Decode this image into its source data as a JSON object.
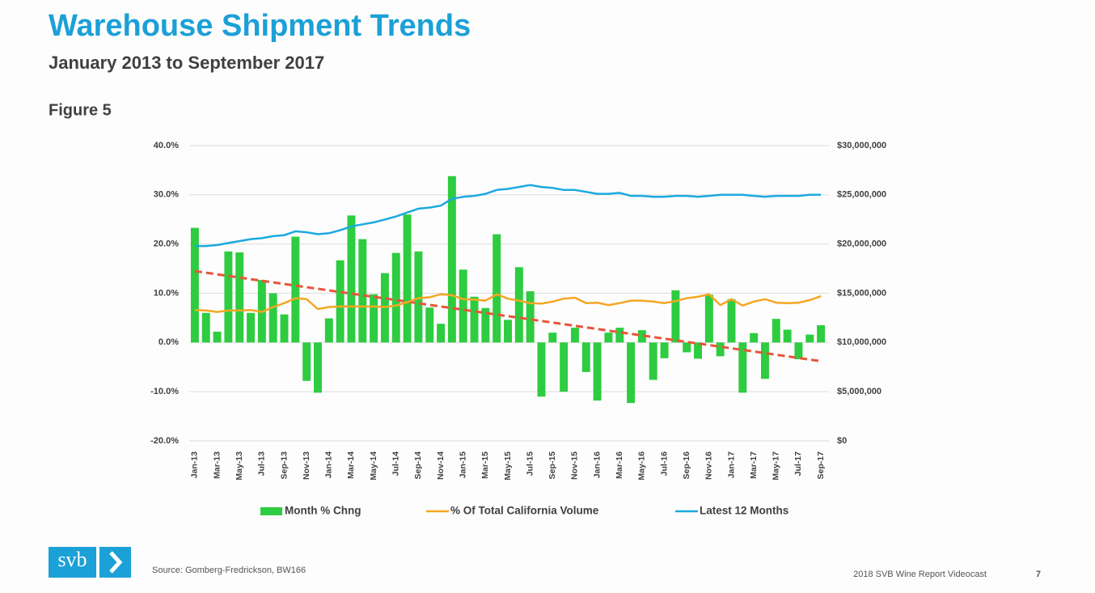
{
  "slide": {
    "title": "Warehouse Shipment Trends",
    "subtitle": "January 2013 to September 2017",
    "figure": "Figure 5",
    "source": "Source: Gomberg-Fredrickson, BW166",
    "footer": "2018 SVB Wine Report Videocast",
    "page_number": "7",
    "logo": "svb"
  },
  "chart_data": {
    "type": "bar_line",
    "categories": [
      "Jan-13",
      null,
      "Mar-13",
      null,
      "May-13",
      null,
      "Jul-13",
      null,
      "Sep-13",
      null,
      "Nov-13",
      null,
      "Jan-14",
      null,
      "Mar-14",
      null,
      "May-14",
      null,
      "Jul-14",
      null,
      "Sep-14",
      null,
      "Nov-14",
      null,
      "Jan-15",
      null,
      "Mar-15",
      null,
      "May-15",
      null,
      "Jul-15",
      null,
      "Sep-15",
      null,
      "Nov-15",
      null,
      "Jan-16",
      null,
      "Mar-16",
      null,
      "May-16",
      null,
      "Jul-16",
      null,
      "Sep-16",
      null,
      "Nov-16",
      null,
      "Jan-17",
      null,
      "Mar-17",
      null,
      "May-17",
      null,
      "Jul-17",
      null,
      "Sep-17"
    ],
    "series": [
      {
        "name": "Month % Chng",
        "type": "bar",
        "color": "#2ecc40",
        "values": [
          23.3,
          6,
          2.2,
          18.5,
          18.3,
          6,
          12.7,
          10,
          5.7,
          21.5,
          -7.8,
          -10.2,
          4.9,
          16.7,
          25.8,
          21,
          9.8,
          14.1,
          18.2,
          26,
          18.5,
          7.1,
          3.8,
          33.8,
          14.8,
          9.3,
          7,
          22,
          4.6,
          15.3,
          10.4,
          -11,
          2,
          -10,
          3,
          -6,
          -11.8,
          2,
          3,
          -12.3,
          2.5,
          -7.6,
          -3.2,
          10.6,
          -2,
          -3.3,
          9.7,
          -2.8,
          8.8,
          -10.2,
          1.9,
          -7.4,
          4.8,
          2.6,
          -3.4,
          1.6,
          3.5
        ]
      },
      {
        "name": "% Of Total California Volume",
        "type": "line",
        "color": "#f5a623",
        "values": [
          6.6,
          6.5,
          6.2,
          6.5,
          6.5,
          6.6,
          6.2,
          7.2,
          8.0,
          9.0,
          8.8,
          6.8,
          7.2,
          7.3,
          7.3,
          7.3,
          7.3,
          7.2,
          7.5,
          8.2,
          9.0,
          9.2,
          9.8,
          9.6,
          8.8,
          8.7,
          8.5,
          9.8,
          8.9,
          8.5,
          8.0,
          7.9,
          8.3,
          8.9,
          9.1,
          8.0,
          8.1,
          7.6,
          8.0,
          8.5,
          8.5,
          8.3,
          8.0,
          8.4,
          9.0,
          9.3,
          9.8,
          7.6,
          8.8,
          7.5,
          8.3,
          8.8,
          8.1,
          8.0,
          8.1,
          8.6,
          9.4
        ]
      },
      {
        "name": "Latest 12 Months",
        "type": "line",
        "axis": "y2",
        "color": "#1ba9e1",
        "values": [
          19800000,
          19800000,
          19900000,
          20100000,
          20300000,
          20500000,
          20600000,
          20800000,
          20900000,
          21300000,
          21200000,
          21000000,
          21100000,
          21400000,
          21800000,
          22000000,
          22200000,
          22500000,
          22800000,
          23200000,
          23600000,
          23700000,
          23900000,
          24600000,
          24800000,
          24900000,
          25100000,
          25500000,
          25600000,
          25800000,
          26000000,
          25800000,
          25700000,
          25500000,
          25500000,
          25300000,
          25100000,
          25100000,
          25200000,
          24900000,
          24900000,
          24800000,
          24800000,
          24900000,
          24900000,
          24800000,
          24900000,
          25000000,
          25000000,
          25000000,
          24900000,
          24800000,
          24900000,
          24900000,
          24900000,
          25000000,
          25000000
        ]
      }
    ],
    "trendline": {
      "start": 14.5,
      "end": -3.8,
      "color": "#e8553a"
    },
    "ylim": [
      -20,
      40
    ],
    "yticks": [
      {
        "value": -20,
        "label": "-20.0%"
      },
      {
        "value": -10,
        "label": "-10.0%"
      },
      {
        "value": 0,
        "label": "0.0%"
      },
      {
        "value": 10,
        "label": "10.0%"
      },
      {
        "value": 20,
        "label": "20.0%"
      },
      {
        "value": 30,
        "label": "30.0%"
      },
      {
        "value": 40,
        "label": "40.0%"
      }
    ],
    "y2lim": [
      0,
      30000000
    ],
    "y2ticks": [
      {
        "value": 0,
        "label": "$0"
      },
      {
        "value": 5000000,
        "label": "$5,000,000"
      },
      {
        "value": 10000000,
        "label": "$10,000,000"
      },
      {
        "value": 15000000,
        "label": "$15,000,000"
      },
      {
        "value": 20000000,
        "label": "$20,000,000"
      },
      {
        "value": 25000000,
        "label": "$25,000,000"
      },
      {
        "value": 30000000,
        "label": "$30,000,000"
      }
    ],
    "grid": true,
    "legend": "bottom"
  }
}
